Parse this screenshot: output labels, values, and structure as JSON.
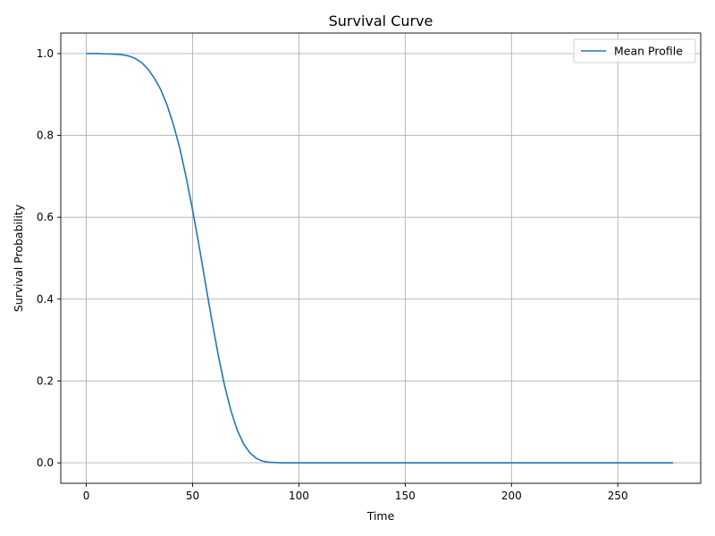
{
  "chart_data": {
    "type": "line",
    "title": "Survival Curve",
    "xlabel": "Time",
    "ylabel": "Survival Probability",
    "xlim": [
      -12,
      289
    ],
    "ylim": [
      -0.05,
      1.05
    ],
    "xticks": [
      0,
      50,
      100,
      150,
      200,
      250
    ],
    "yticks": [
      0.0,
      0.2,
      0.4,
      0.6,
      0.8,
      1.0
    ],
    "xtick_labels": [
      "0",
      "50",
      "100",
      "150",
      "200",
      "250"
    ],
    "ytick_labels": [
      "0.0",
      "0.2",
      "0.4",
      "0.6",
      "0.8",
      "1.0"
    ],
    "grid": true,
    "legend_position": "top-right",
    "series": [
      {
        "name": "Mean Profile",
        "color": "#1f77b4",
        "x": [
          0,
          5,
          10,
          15,
          18,
          20,
          23,
          26,
          29,
          32,
          35,
          38,
          41,
          44,
          47,
          50,
          53,
          56,
          59,
          62,
          65,
          68,
          71,
          74,
          77,
          80,
          83,
          86,
          89,
          92,
          100,
          120,
          150,
          200,
          250,
          276
        ],
        "y": [
          1.0,
          1.0,
          0.999,
          0.998,
          0.996,
          0.994,
          0.988,
          0.978,
          0.962,
          0.94,
          0.912,
          0.874,
          0.826,
          0.768,
          0.697,
          0.618,
          0.532,
          0.44,
          0.35,
          0.265,
          0.19,
          0.128,
          0.08,
          0.046,
          0.024,
          0.011,
          0.004,
          0.0015,
          0.0005,
          0.0001,
          0.0,
          0.0,
          0.0,
          0.0,
          0.0,
          0.0
        ]
      }
    ]
  }
}
